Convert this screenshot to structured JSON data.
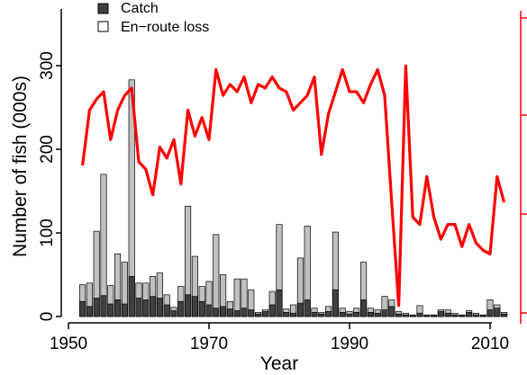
{
  "chart_data": {
    "type": "bar",
    "xlabel": "Year",
    "ylabel": "Number of fish (000s)",
    "x_ticks": [
      "1950",
      "1970",
      "1990",
      "2010"
    ],
    "y_ticks": [
      "0",
      "100",
      "200",
      "300"
    ],
    "xlim": [
      1948,
      2012
    ],
    "ylim": [
      0,
      360
    ],
    "legend": [
      {
        "label": "Catch",
        "color": "#404040"
      },
      {
        "label": "En−route loss",
        "color": "#ffffff"
      }
    ],
    "legend_placement": "top-left",
    "right_axis": {
      "color": "#ff0000",
      "ylim": [
        0,
        400
      ],
      "tick_values": [
        0,
        200,
        400
      ]
    },
    "bar_colors": {
      "catch": "#404040",
      "total_fill": "#c0c0c0"
    },
    "x": [
      1952,
      1953,
      1954,
      1955,
      1956,
      1957,
      1958,
      1959,
      1960,
      1961,
      1962,
      1963,
      1964,
      1965,
      1966,
      1967,
      1968,
      1969,
      1970,
      1971,
      1972,
      1973,
      1974,
      1975,
      1976,
      1977,
      1978,
      1979,
      1980,
      1981,
      1982,
      1983,
      1984,
      1985,
      1986,
      1987,
      1988,
      1989,
      1990,
      1991,
      1992,
      1993,
      1994,
      1995,
      1996,
      1997,
      1998,
      1999,
      2000,
      2001,
      2002,
      2003,
      2004,
      2005,
      2006,
      2007,
      2008,
      2009,
      2010,
      2011,
      2012
    ],
    "series": [
      {
        "name": "Catch",
        "values": [
          18,
          12,
          22,
          25,
          15,
          20,
          15,
          48,
          22,
          20,
          24,
          22,
          14,
          7,
          18,
          26,
          24,
          18,
          14,
          10,
          12,
          9,
          7,
          10,
          8,
          3,
          6,
          14,
          32,
          5,
          4,
          16,
          20,
          5,
          3,
          6,
          32,
          5,
          3,
          5,
          20,
          5,
          4,
          8,
          12,
          3,
          2,
          1,
          4,
          1,
          1,
          6,
          4,
          2,
          1,
          5,
          2,
          1,
          8,
          10,
          3
        ]
      },
      {
        "name": "En−route loss",
        "values": [
          20,
          28,
          80,
          145,
          22,
          55,
          50,
          235,
          18,
          20,
          24,
          30,
          12,
          4,
          18,
          106,
          48,
          18,
          28,
          88,
          38,
          9,
          38,
          35,
          24,
          2,
          2,
          16,
          78,
          4,
          10,
          54,
          88,
          5,
          2,
          6,
          69,
          5,
          3,
          5,
          45,
          5,
          4,
          16,
          8,
          3,
          2,
          1,
          9,
          1,
          1,
          2,
          4,
          2,
          1,
          2,
          2,
          1,
          12,
          4,
          2
        ]
      },
      {
        "name": "",
        "axis": "right",
        "type": "line",
        "color": "#ff0000",
        "values": [
          200,
          275,
          290,
          300,
          235,
          275,
          295,
          305,
          205,
          195,
          160,
          225,
          210,
          235,
          175,
          275,
          240,
          265,
          235,
          330,
          295,
          310,
          300,
          320,
          285,
          310,
          305,
          320,
          305,
          300,
          275,
          285,
          295,
          320,
          215,
          270,
          300,
          330,
          300,
          300,
          285,
          310,
          330,
          295,
          150,
          10,
          335,
          130,
          120,
          185,
          130,
          100,
          120,
          120,
          90,
          120,
          95,
          85,
          80,
          185,
          150
        ]
      }
    ]
  }
}
